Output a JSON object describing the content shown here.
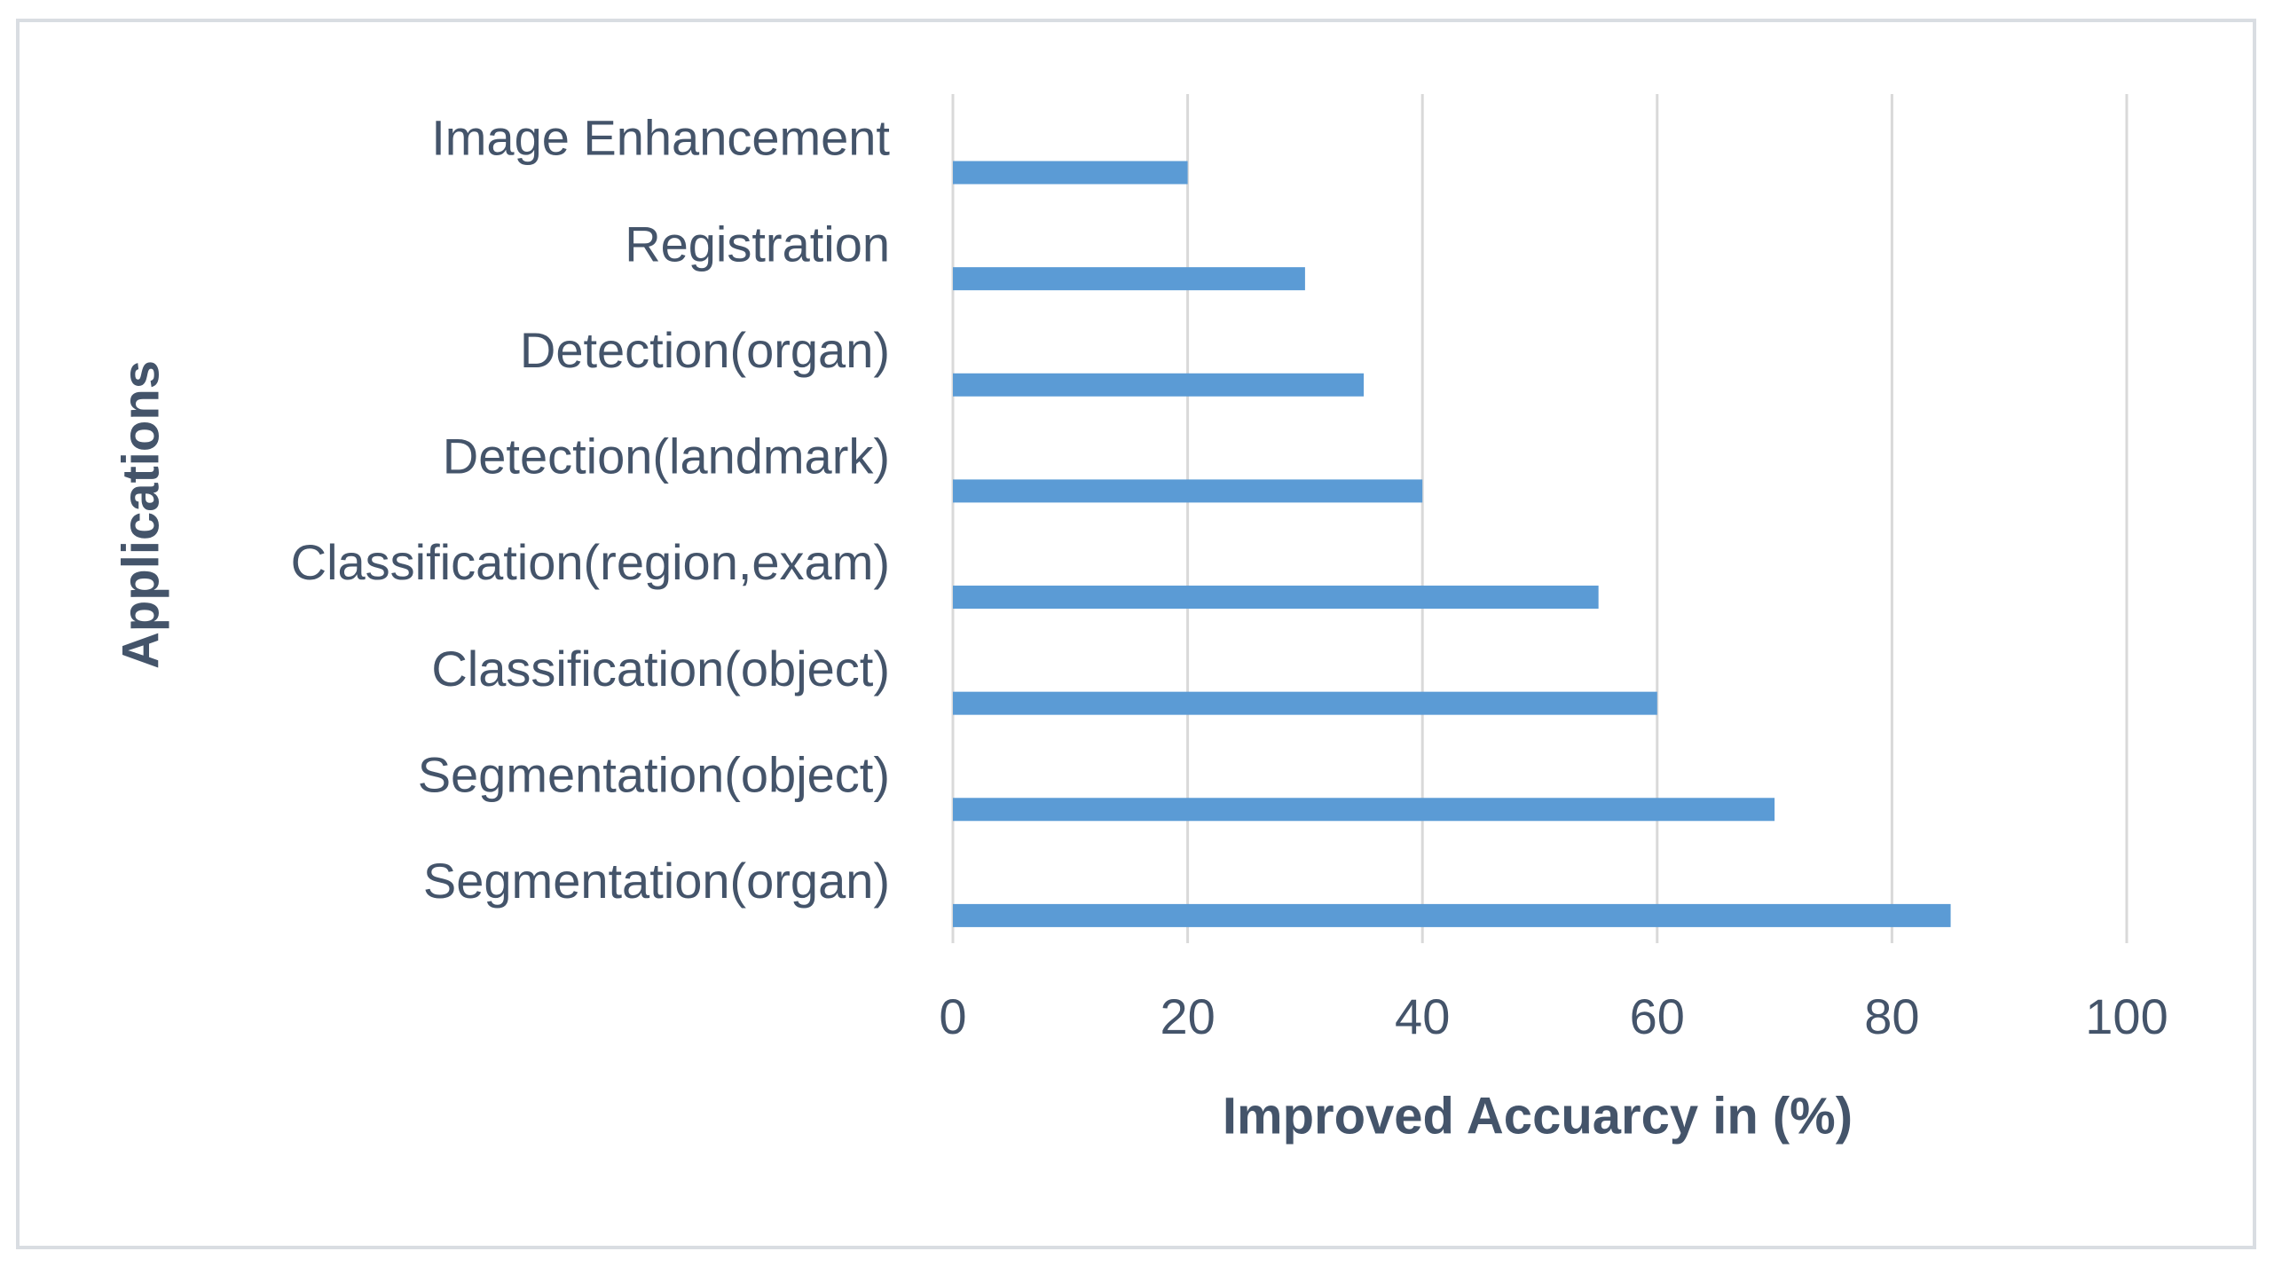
{
  "chart_data": {
    "type": "barh",
    "categories": [
      "Image Enhancement",
      "Registration",
      "Detection(organ)",
      "Detection(landmark)",
      "Classification(region,exam)",
      "Classification(object)",
      "Segmentation(object)",
      "Segmentation(organ)"
    ],
    "values": [
      20,
      30,
      35,
      40,
      55,
      60,
      70,
      85
    ],
    "color": "#5b9bd5",
    "xlabel": "Improved Accuarcy in (%)",
    "ylabel": "Applications",
    "xlim": [
      0,
      100
    ],
    "xticks": [
      0,
      20,
      40,
      60,
      80,
      100
    ],
    "grid": true
  }
}
